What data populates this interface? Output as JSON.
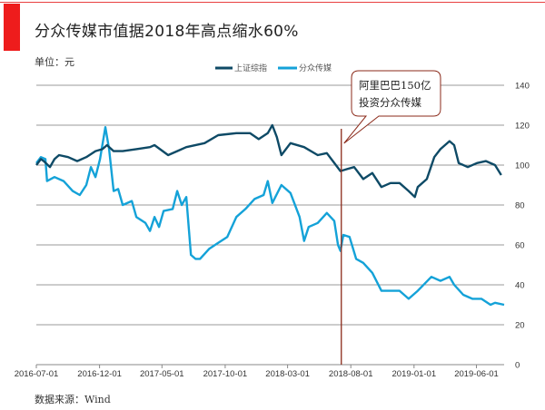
{
  "header": {
    "title": "分众传媒市值据2018年高点缩水60%",
    "unit": "单位：元",
    "source": "数据来源：Wind"
  },
  "colors": {
    "sse": "#0e4a66",
    "focus_media": "#14a2d8",
    "marker": "#8b2a1a",
    "accent": "#ee1c1c"
  },
  "chart_data": {
    "type": "line",
    "title": "分众传媒市值据2018年高点缩水60%",
    "ylabel": "单位：元",
    "ylim": [
      0,
      140
    ],
    "yticks": [
      "0",
      "20",
      "40",
      "60",
      "80",
      "100",
      "120",
      "140"
    ],
    "xlim": [
      "2016-07-01",
      "2019-08-07"
    ],
    "xticks": [
      "2016-07-01",
      "2016-12-01",
      "2017-05-01",
      "2017-10-01",
      "2018-03-01",
      "2018-08-01",
      "2019-01-01",
      "2019-06-01"
    ],
    "grid": "horizontal",
    "legend_position": "top",
    "series": [
      {
        "name": "上证综指",
        "points": [
          [
            "2016-07-01",
            100
          ],
          [
            "2016-07-12",
            103
          ],
          [
            "2016-07-19",
            102
          ],
          [
            "2016-08-03",
            99
          ],
          [
            "2016-08-14",
            103
          ],
          [
            "2016-08-25",
            105
          ],
          [
            "2016-09-16",
            104
          ],
          [
            "2016-10-08",
            102
          ],
          [
            "2016-10-30",
            104
          ],
          [
            "2016-11-21",
            107
          ],
          [
            "2016-12-08",
            108
          ],
          [
            "2016-12-19",
            110
          ],
          [
            "2017-01-04",
            107
          ],
          [
            "2017-01-26",
            107
          ],
          [
            "2017-02-28",
            108
          ],
          [
            "2017-04-02",
            109
          ],
          [
            "2017-04-13",
            110
          ],
          [
            "2017-05-16",
            105
          ],
          [
            "2017-06-07",
            107
          ],
          [
            "2017-06-29",
            109
          ],
          [
            "2017-08-12",
            111
          ],
          [
            "2017-09-14",
            115
          ],
          [
            "2017-10-28",
            116
          ],
          [
            "2017-11-30",
            116
          ],
          [
            "2017-12-21",
            113
          ],
          [
            "2018-01-12",
            116
          ],
          [
            "2018-01-23",
            120
          ],
          [
            "2018-02-03",
            114
          ],
          [
            "2018-02-14",
            105
          ],
          [
            "2018-03-08",
            111
          ],
          [
            "2018-04-10",
            109
          ],
          [
            "2018-05-13",
            105
          ],
          [
            "2018-06-04",
            106
          ],
          [
            "2018-06-26",
            100
          ],
          [
            "2018-07-07",
            97
          ],
          [
            "2018-07-23",
            98
          ],
          [
            "2018-08-09",
            99
          ],
          [
            "2018-08-31",
            93
          ],
          [
            "2018-09-22",
            96
          ],
          [
            "2018-10-14",
            89
          ],
          [
            "2018-11-05",
            91
          ],
          [
            "2018-11-27",
            91
          ],
          [
            "2018-12-19",
            87
          ],
          [
            "2019-01-03",
            84
          ],
          [
            "2019-01-10",
            89
          ],
          [
            "2019-02-01",
            93
          ],
          [
            "2019-02-19",
            104
          ],
          [
            "2019-03-06",
            108
          ],
          [
            "2019-03-28",
            112
          ],
          [
            "2019-04-08",
            110
          ],
          [
            "2019-04-19",
            101
          ],
          [
            "2019-05-11",
            99
          ],
          [
            "2019-06-02",
            101
          ],
          [
            "2019-06-24",
            102
          ],
          [
            "2019-07-16",
            100
          ],
          [
            "2019-07-31",
            95
          ]
        ]
      },
      {
        "name": "分众传媒",
        "points": [
          [
            "2016-07-01",
            101
          ],
          [
            "2016-07-12",
            104
          ],
          [
            "2016-07-23",
            103
          ],
          [
            "2016-07-27",
            92
          ],
          [
            "2016-08-14",
            94
          ],
          [
            "2016-09-05",
            92
          ],
          [
            "2016-09-27",
            87
          ],
          [
            "2016-10-14",
            85
          ],
          [
            "2016-10-30",
            90
          ],
          [
            "2016-11-10",
            99
          ],
          [
            "2016-11-21",
            94
          ],
          [
            "2016-12-02",
            103
          ],
          [
            "2016-12-15",
            119
          ],
          [
            "2016-12-24",
            108
          ],
          [
            "2017-01-04",
            87
          ],
          [
            "2017-01-15",
            88
          ],
          [
            "2017-01-26",
            80
          ],
          [
            "2017-02-17",
            82
          ],
          [
            "2017-02-28",
            74
          ],
          [
            "2017-03-22",
            71
          ],
          [
            "2017-04-02",
            67
          ],
          [
            "2017-04-13",
            74
          ],
          [
            "2017-04-24",
            69
          ],
          [
            "2017-05-05",
            77
          ],
          [
            "2017-05-27",
            78
          ],
          [
            "2017-06-07",
            87
          ],
          [
            "2017-06-18",
            80
          ],
          [
            "2017-06-29",
            84
          ],
          [
            "2017-07-10",
            55
          ],
          [
            "2017-07-21",
            53
          ],
          [
            "2017-08-01",
            53
          ],
          [
            "2017-08-23",
            58
          ],
          [
            "2017-09-14",
            61
          ],
          [
            "2017-10-06",
            64
          ],
          [
            "2017-10-28",
            74
          ],
          [
            "2017-11-19",
            78
          ],
          [
            "2017-12-11",
            83
          ],
          [
            "2018-01-02",
            85
          ],
          [
            "2018-01-12",
            92
          ],
          [
            "2018-01-23",
            81
          ],
          [
            "2018-02-14",
            90
          ],
          [
            "2018-03-08",
            86
          ],
          [
            "2018-03-30",
            74
          ],
          [
            "2018-04-10",
            62
          ],
          [
            "2018-04-21",
            69
          ],
          [
            "2018-05-13",
            71
          ],
          [
            "2018-06-04",
            76
          ],
          [
            "2018-06-22",
            72
          ],
          [
            "2018-07-01",
            60
          ],
          [
            "2018-07-07",
            57
          ],
          [
            "2018-07-14",
            65
          ],
          [
            "2018-07-29",
            64
          ],
          [
            "2018-08-14",
            53
          ],
          [
            "2018-08-31",
            51
          ],
          [
            "2018-09-22",
            46
          ],
          [
            "2018-10-14",
            37
          ],
          [
            "2018-11-05",
            37
          ],
          [
            "2018-11-27",
            37
          ],
          [
            "2018-12-19",
            33
          ],
          [
            "2019-01-10",
            37
          ],
          [
            "2019-02-12",
            44
          ],
          [
            "2019-03-06",
            42
          ],
          [
            "2019-03-28",
            44
          ],
          [
            "2019-04-08",
            40
          ],
          [
            "2019-04-30",
            35
          ],
          [
            "2019-05-22",
            33
          ],
          [
            "2019-06-13",
            33
          ],
          [
            "2019-07-05",
            30
          ],
          [
            "2019-07-16",
            31
          ],
          [
            "2019-08-07",
            30
          ]
        ]
      }
    ],
    "annotation": {
      "date": "2018-07-09",
      "lines": [
        "阿里巴巴150亿",
        "投资分众传媒"
      ]
    }
  }
}
